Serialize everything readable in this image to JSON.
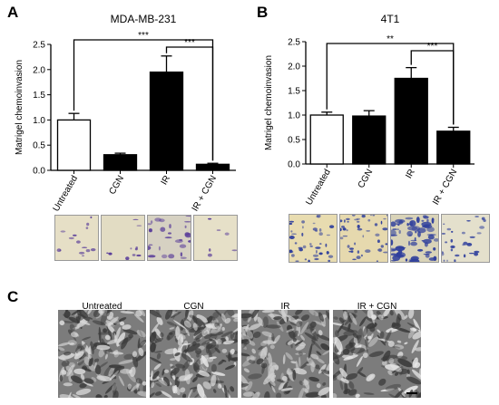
{
  "panels": {
    "a": "A",
    "b": "B",
    "c": "C"
  },
  "chart_data": [
    {
      "type": "bar",
      "title": "MDA-MB-231",
      "ylabel": "Matrigel chemoinvasion",
      "categories": [
        "Untreated",
        "CGN",
        "IR",
        "IR + CGN"
      ],
      "values": [
        1.0,
        0.31,
        1.95,
        0.12
      ],
      "errors": [
        0.13,
        0.03,
        0.32,
        0.02
      ],
      "fill": [
        "#ffffff",
        "#000000",
        "#000000",
        "#000000"
      ],
      "ylim": [
        0.0,
        2.5
      ],
      "yticks": [
        "0.0",
        "0.5",
        "1.0",
        "1.5",
        "2.0",
        "2.5"
      ],
      "significance": [
        {
          "from": 0,
          "to": 3,
          "label": "***"
        },
        {
          "from": 2,
          "to": 3,
          "label": "***"
        }
      ],
      "grid": false
    },
    {
      "type": "bar",
      "title": "4T1",
      "ylabel": "Matrigel chemoinvasion",
      "categories": [
        "Untreated",
        "CGN",
        "IR",
        "IR + CGN"
      ],
      "values": [
        1.0,
        0.98,
        1.75,
        0.67
      ],
      "errors": [
        0.06,
        0.11,
        0.22,
        0.08
      ],
      "fill": [
        "#ffffff",
        "#000000",
        "#000000",
        "#000000"
      ],
      "ylim": [
        0.0,
        2.5
      ],
      "yticks": [
        "0.0",
        "0.5",
        "1.0",
        "1.5",
        "2.0",
        "2.5"
      ],
      "significance": [
        {
          "from": 0,
          "to": 3,
          "label": "**"
        },
        {
          "from": 2,
          "to": 3,
          "label": "***"
        }
      ],
      "grid": false
    }
  ],
  "micrographs": {
    "labels": [
      "Untreated",
      "CGN",
      "IR",
      "IR + CGN"
    ]
  }
}
